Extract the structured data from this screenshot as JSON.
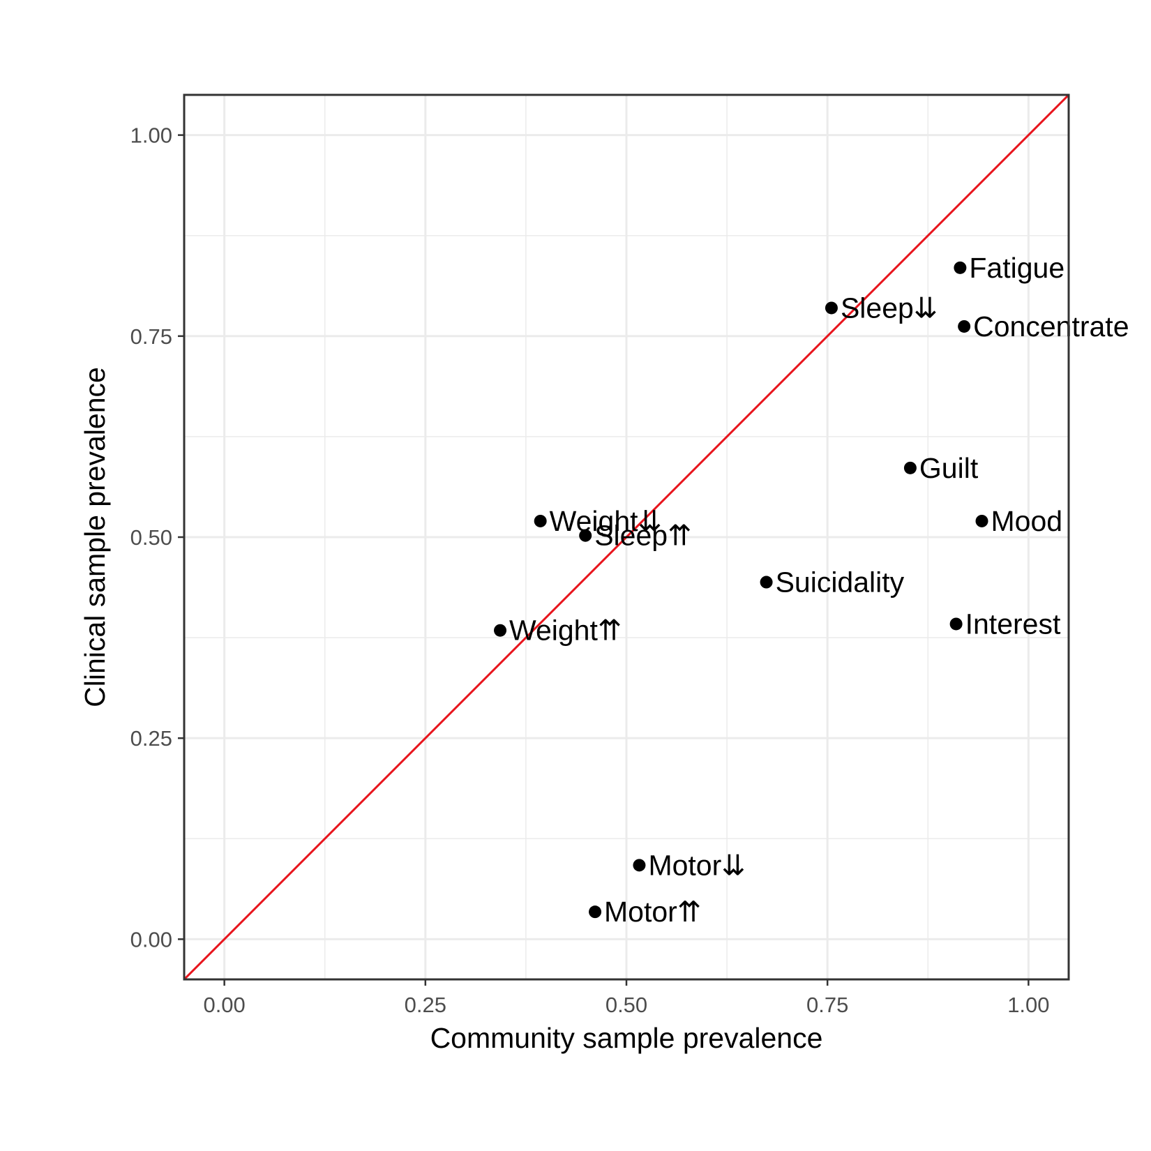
{
  "chart_data": {
    "type": "scatter",
    "xlabel": "Community sample prevalence",
    "ylabel": "Clinical sample prevalence",
    "xlim": [
      -0.05,
      1.05
    ],
    "ylim": [
      -0.05,
      1.05
    ],
    "x_ticks": [
      "0.00",
      "0.25",
      "0.50",
      "0.75",
      "1.00"
    ],
    "y_ticks": [
      "0.00",
      "0.25",
      "0.50",
      "0.75",
      "1.00"
    ],
    "grid": true,
    "reference_line": {
      "slope": 1,
      "intercept": 0,
      "color": "#e8141c"
    },
    "point_color": "#000000",
    "points": [
      {
        "label": "Fatigue",
        "x": 0.915,
        "y": 0.835
      },
      {
        "label": "Sleep⇊",
        "x": 0.755,
        "y": 0.785
      },
      {
        "label": "Concentrate",
        "x": 0.92,
        "y": 0.762
      },
      {
        "label": "Guilt",
        "x": 0.853,
        "y": 0.586
      },
      {
        "label": "Mood",
        "x": 0.942,
        "y": 0.52
      },
      {
        "label": "Weight⇊",
        "x": 0.393,
        "y": 0.52
      },
      {
        "label": "Sleep⇈",
        "x": 0.449,
        "y": 0.502
      },
      {
        "label": "Suicidality",
        "x": 0.674,
        "y": 0.444
      },
      {
        "label": "Interest",
        "x": 0.91,
        "y": 0.392
      },
      {
        "label": "Weight⇈",
        "x": 0.343,
        "y": 0.384
      },
      {
        "label": "Motor⇊",
        "x": 0.516,
        "y": 0.092
      },
      {
        "label": "Motor⇈",
        "x": 0.461,
        "y": 0.034
      }
    ]
  }
}
